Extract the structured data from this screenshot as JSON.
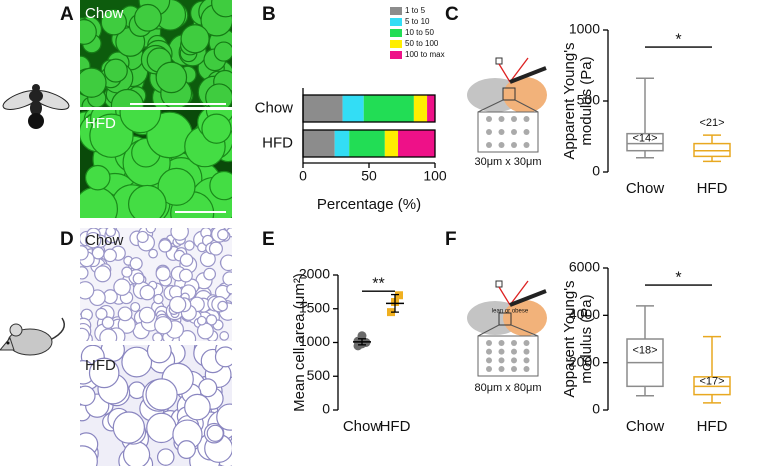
{
  "figure": {
    "letters": [
      "A",
      "B",
      "C",
      "D",
      "E",
      "F"
    ],
    "image_labels": [
      "Chow",
      "HFD",
      "Chow",
      "HFD"
    ],
    "diagram_labels": [
      "30μm x 30μm",
      "lean or obese",
      "80μm x 80μm"
    ]
  },
  "chart_data": [
    {
      "type": "stacked-barh",
      "categories": [
        "Chow",
        "HFD"
      ],
      "series": [
        {
          "name": "1 to 5",
          "color": "#8c8c8c",
          "values": [
            30,
            24
          ]
        },
        {
          "name": "5 to 10",
          "color": "#33ddf5",
          "values": [
            16,
            11
          ]
        },
        {
          "name": "10 to 50",
          "color": "#22dd55",
          "values": [
            38,
            27
          ]
        },
        {
          "name": "50 to 100",
          "color": "#ffee00",
          "values": [
            10,
            10
          ]
        },
        {
          "name": "100 to max",
          "color": "#ee1188",
          "values": [
            6,
            28
          ]
        }
      ],
      "xlim": [
        0,
        100
      ],
      "xticks": [
        0,
        50,
        100
      ],
      "x_label": "Percentage (%)"
    },
    {
      "type": "box",
      "categories": [
        "Chow",
        "HFD"
      ],
      "colors": [
        "#8c8c8c",
        "#e8a820"
      ],
      "boxes": [
        {
          "whisker_low": 100,
          "q1": 150,
          "median": 200,
          "q3": 270,
          "whisker_high": 660,
          "n_label": "<14>"
        },
        {
          "whisker_low": 75,
          "q1": 110,
          "median": 150,
          "q3": 200,
          "whisker_high": 260,
          "n_label": "<21>"
        }
      ],
      "ylim": [
        0,
        1000
      ],
      "yticks": [
        0,
        500,
        1000
      ],
      "y_label": [
        "Apparent Young's",
        "modulus (Pa)"
      ],
      "significance": "*"
    },
    {
      "type": "dot",
      "categories": [
        "Chow",
        "HFD"
      ],
      "colors": [
        "#6a6a6a",
        "#f0b020"
      ],
      "points": [
        [
          950,
          980,
          1000,
          1020,
          1100
        ],
        [
          1450,
          1600,
          1700
        ]
      ],
      "means": [
        1010,
        1580
      ],
      "errors": [
        45,
        130
      ],
      "ylim": [
        0,
        2000
      ],
      "yticks": [
        0,
        500,
        1000,
        1500,
        2000
      ],
      "y_label": "Mean cell area (μm²)",
      "significance": "**"
    },
    {
      "type": "box",
      "categories": [
        "Chow",
        "HFD"
      ],
      "colors": [
        "#8c8c8c",
        "#e8a820"
      ],
      "boxes": [
        {
          "whisker_low": 600,
          "q1": 1000,
          "median": 2000,
          "q3": 3000,
          "whisker_high": 4400,
          "n_label": "<18>"
        },
        {
          "whisker_low": 300,
          "q1": 650,
          "median": 1000,
          "q3": 1400,
          "whisker_high": 3100,
          "n_label": "<17>"
        }
      ],
      "ylim": [
        0,
        6000
      ],
      "yticks": [
        0,
        2000,
        4000,
        6000
      ],
      "y_label": [
        "Apparent Young's",
        "modulus (Pa)"
      ],
      "significance": "*"
    }
  ]
}
